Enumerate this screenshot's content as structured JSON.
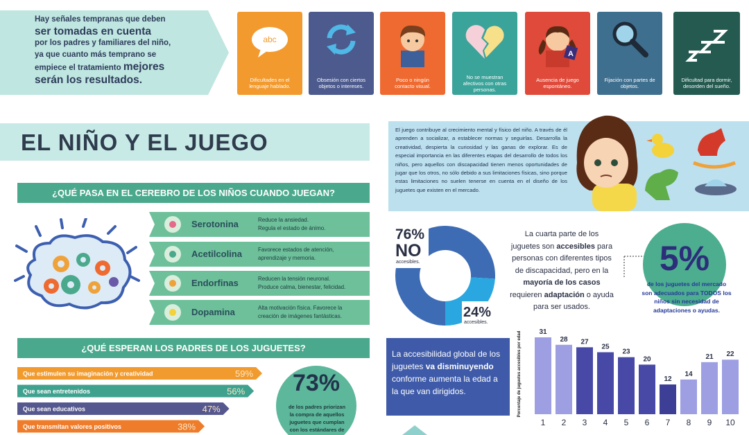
{
  "intro": {
    "lines": [
      "Hay señales tempranas que deben",
      "ser tomadas en cuenta",
      "por los padres y familiares del niño,",
      "ya que cuanto más temprano se",
      [
        "empiece el tratamiento",
        "mejores"
      ],
      "serán los resultados."
    ]
  },
  "signals": [
    {
      "label": "Dificultades en el lenguaje hablado.",
      "color": "#f29a2e",
      "icon_text": "abc"
    },
    {
      "label": "Obsesión con ciertos objetos o intereses.",
      "color": "#4c5a8d"
    },
    {
      "label": "Poco o ningún contacto visual.",
      "color": "#ef6a30"
    },
    {
      "label": "No se muestran afectivos con otras personas.",
      "color": "#3aa39a"
    },
    {
      "label": "Ausencia de juego espontáneo.",
      "color": "#df4a3a",
      "icon_text": "A"
    },
    {
      "label": "Fijación con partes de objetos.",
      "color": "#3f6f8f"
    },
    {
      "label": "Dificultad para dormir, desorden del sueño.",
      "color": "#245a50"
    }
  ],
  "section_title": "EL NIÑO Y EL JUEGO",
  "brain": {
    "heading": "¿QUÉ PASA EN EL CEREBRO DE LOS NIÑOS CUANDO JUEGAN?",
    "items": [
      {
        "name": "Serotonina",
        "lines": [
          "Reduce la ansiedad.",
          "Regula el estado de ánimo."
        ]
      },
      {
        "name": "Acetilcolina",
        "lines": [
          "Favorece estados de atención,",
          "aprendizaje y memoria."
        ]
      },
      {
        "name": "Endorfinas",
        "lines": [
          "Reducen la tensión neuronal.",
          "Produce calma, bienestar, felicidad."
        ]
      },
      {
        "name": "Dopamina",
        "lines": [
          "Alta motivación física. Favorece la",
          "creación de imágenes fantásticas."
        ]
      }
    ]
  },
  "blob73": {
    "value_text": "73%",
    "lines": [
      "de los padres priorizan",
      "la compra de aquellos",
      "juguetes que cumplan",
      "con los estándares de"
    ]
  },
  "play_text": "El juego contribuye al crecimiento mental y físico del niño. A través de él aprenden a socializar, a establecer normas y seguirlas. Desarrolla la creatividad, despierta la curiosidad y las ganas de explorar. Es de especial importancia en las diferentes etapas del desarrollo de todos los niños, pero aquellos con discapacidad tienen menos oportunidades de jugar que los otros, no sólo debido a sus limitaciones físicas, sino porque estas limitaciones no suelen tenerse en cuenta en el diseño de los juguetes que existen en el mercado.",
  "quarter_text": [
    "La cuarta parte de los juguetes son ",
    {
      "text": "accesibles"
    },
    " para personas con diferentes tipos de discapacidad, pero en la ",
    {
      "text": "mayoría de los casos"
    },
    " requieren ",
    {
      "text": "adaptación"
    },
    " o ayuda para ser usados."
  ],
  "blob5": {
    "value_text": "5%",
    "segments": [
      "de los juguetes del mercado son adecuados para ",
      {
        "text": "TODOS"
      },
      " los niños sin necesidad de adaptaciones o ayudas."
    ]
  },
  "age_text": [
    "La accesibilidad global de los juguetes ",
    {
      "text": "va disminuyendo"
    },
    " conforme aumenta la edad a la que van dirigidos."
  ],
  "chart_data": [
    {
      "type": "pie",
      "values": [
        76,
        24
      ],
      "value_labels": [
        "76%",
        "24%"
      ],
      "categories": [
        "accesibles.",
        "accesibles."
      ],
      "annotation": "NO",
      "colors": [
        "#3d6cb5",
        "#2aa7e0"
      ]
    },
    {
      "type": "hbar",
      "title": "¿QUÉ ESPERAN LOS PADRES DE LOS JUGUETES?",
      "categories": [
        "Que estimulen su imaginación y creatividad",
        "Que sean entretenidos",
        "Que sean educativos",
        "Que transmitan valores positivos"
      ],
      "values": [
        59,
        56,
        47,
        38
      ],
      "value_labels": [
        "59%",
        "56%",
        "47%",
        "38%"
      ],
      "colors": [
        "#f19a2e",
        "#3fa28f",
        "#55578f",
        "#ef7c2a"
      ]
    },
    {
      "type": "bar",
      "y_label": "Porcentaje de juguetes accesibles por edad",
      "categories": [
        "1",
        "2",
        "3",
        "4",
        "5",
        "6",
        "7",
        "8",
        "9",
        "10"
      ],
      "values": [
        31,
        28,
        27,
        25,
        23,
        20,
        12,
        14,
        21,
        22
      ],
      "colors": [
        "#9d9fe2",
        "#9d9fe2",
        "#4849a6",
        "#4849a6",
        "#4849a6",
        "#4849a6",
        "#3d3f96",
        "#9d9fe2",
        "#9d9fe2",
        "#9d9fe2"
      ]
    }
  ]
}
